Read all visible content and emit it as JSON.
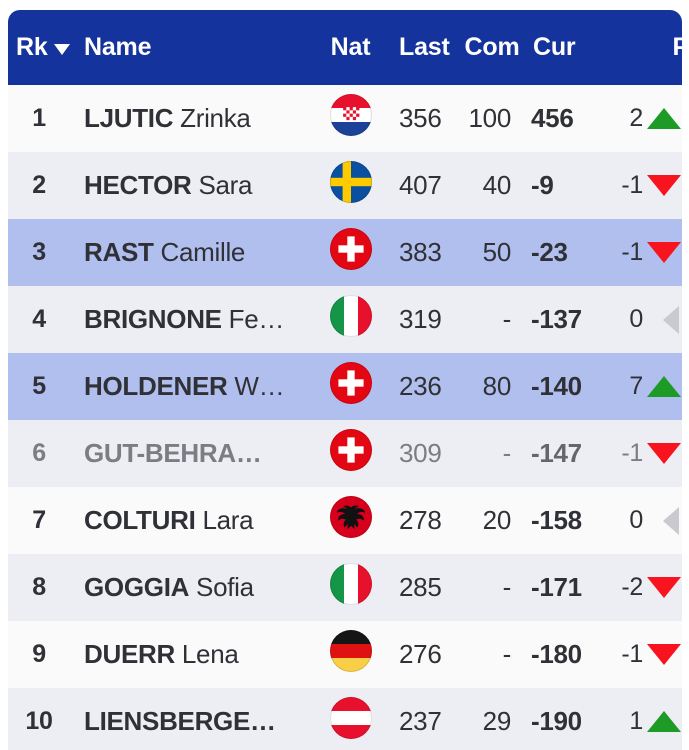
{
  "table": {
    "header": {
      "rk": "Rk",
      "name": "Name",
      "nat": "Nat",
      "last": "Last",
      "com": "Com",
      "cur": "Cur",
      "p_partial": "P",
      "sort_icon": "sort-desc-caret"
    },
    "colors": {
      "header_bg": "#14339c",
      "header_text": "#ffffff",
      "row_odd_bg": "#fafafb",
      "row_even_bg": "#edeef4",
      "row_highlight_bg": "#b1bfee",
      "text_dark": "#303136",
      "text_muted": "#7b7d83",
      "trend_up_green": "#1d9b26",
      "trend_down_red": "#f8141e",
      "trend_neutral_gray": "#c9cacf"
    },
    "rows": [
      {
        "rank": "1",
        "last_name": "LJUTIC",
        "first_name": "Zrinka",
        "nat": "croatia",
        "last": "356",
        "com": "100",
        "cur": "456",
        "diff": "2",
        "trend": "up",
        "highlight": false,
        "muted": false
      },
      {
        "rank": "2",
        "last_name": "HECTOR",
        "first_name": "Sara",
        "nat": "sweden",
        "last": "407",
        "com": "40",
        "cur": "-9",
        "diff": "-1",
        "trend": "down",
        "highlight": false,
        "muted": false
      },
      {
        "rank": "3",
        "last_name": "RAST",
        "first_name": "Camille",
        "nat": "switzerland",
        "last": "383",
        "com": "50",
        "cur": "-23",
        "diff": "-1",
        "trend": "down",
        "highlight": true,
        "muted": false
      },
      {
        "rank": "4",
        "last_name": "BRIGNONE",
        "first_name": "Fe…",
        "nat": "italy",
        "last": "319",
        "com": "-",
        "cur": "-137",
        "diff": "0",
        "trend": "neutral",
        "highlight": false,
        "muted": false
      },
      {
        "rank": "5",
        "last_name": "HOLDENER",
        "first_name": "W…",
        "nat": "switzerland",
        "last": "236",
        "com": "80",
        "cur": "-140",
        "diff": "7",
        "trend": "up",
        "highlight": true,
        "muted": false
      },
      {
        "rank": "6",
        "last_name": "GUT-BEHRA…",
        "first_name": "",
        "nat": "switzerland",
        "last": "309",
        "com": "-",
        "cur": "-147",
        "diff": "-1",
        "trend": "down",
        "highlight": false,
        "muted": true
      },
      {
        "rank": "7",
        "last_name": "COLTURI",
        "first_name": "Lara",
        "nat": "albania",
        "last": "278",
        "com": "20",
        "cur": "-158",
        "diff": "0",
        "trend": "neutral",
        "highlight": false,
        "muted": false
      },
      {
        "rank": "8",
        "last_name": "GOGGIA",
        "first_name": "Sofia",
        "nat": "italy",
        "last": "285",
        "com": "-",
        "cur": "-171",
        "diff": "-2",
        "trend": "down",
        "highlight": false,
        "muted": false
      },
      {
        "rank": "9",
        "last_name": "DUERR",
        "first_name": "Lena",
        "nat": "germany",
        "last": "276",
        "com": "-",
        "cur": "-180",
        "diff": "-1",
        "trend": "down",
        "highlight": false,
        "muted": false
      },
      {
        "rank": "10",
        "last_name": "LIENSBERGE…",
        "first_name": "",
        "nat": "austria",
        "last": "237",
        "com": "29",
        "cur": "-190",
        "diff": "1",
        "trend": "up",
        "highlight": false,
        "muted": false
      }
    ]
  }
}
